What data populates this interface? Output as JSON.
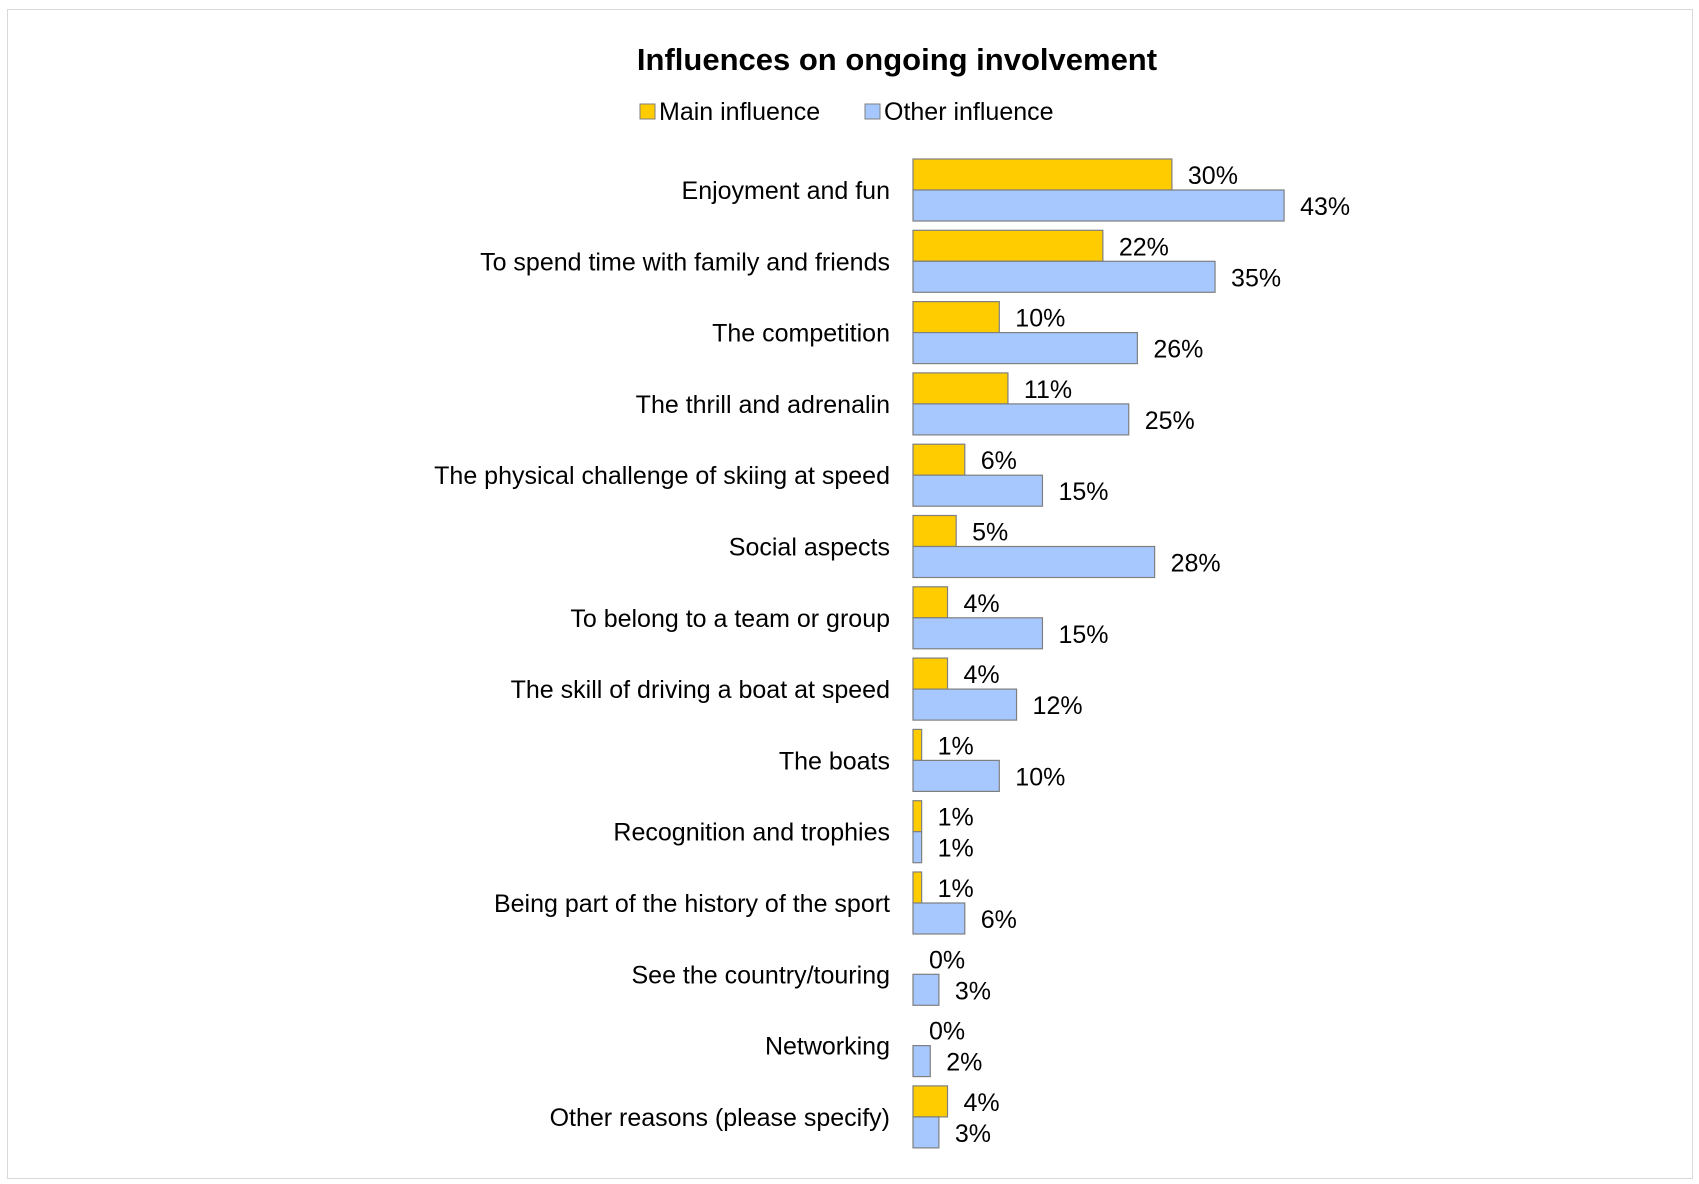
{
  "chart_data": {
    "type": "bar",
    "orientation": "horizontal",
    "title": "Influences on ongoing involvement",
    "legend_position": "top",
    "grid": false,
    "xlim": [
      0,
      50
    ],
    "categories": [
      "Enjoyment and fun",
      "To spend time with family and friends",
      "The competition",
      "The thrill and adrenalin",
      "The physical challenge of skiing at speed",
      "Social aspects",
      "To belong to a team or group",
      "The skill of driving a boat at speed",
      "The boats",
      "Recognition and trophies",
      "Being part of the history of the sport",
      "See the country/touring",
      "Networking",
      "Other reasons (please specify)"
    ],
    "series": [
      {
        "name": "Main influence",
        "color": "#FFCC00",
        "values": [
          30,
          22,
          10,
          11,
          6,
          5,
          4,
          4,
          1,
          1,
          1,
          0,
          0,
          4
        ],
        "labels": [
          "30%",
          "22%",
          "10%",
          "11%",
          "6%",
          "5%",
          "4%",
          "4%",
          "1%",
          "1%",
          "1%",
          "0%",
          "0%",
          "4%"
        ]
      },
      {
        "name": "Other influence",
        "color": "#A6C8FF",
        "values": [
          43,
          35,
          26,
          25,
          15,
          28,
          15,
          12,
          10,
          1,
          6,
          3,
          2,
          3
        ],
        "labels": [
          "43%",
          "35%",
          "26%",
          "25%",
          "15%",
          "28%",
          "15%",
          "12%",
          "10%",
          "1%",
          "6%",
          "3%",
          "2%",
          "3%"
        ]
      }
    ],
    "bar_outline_color": "#7F7F7F"
  }
}
